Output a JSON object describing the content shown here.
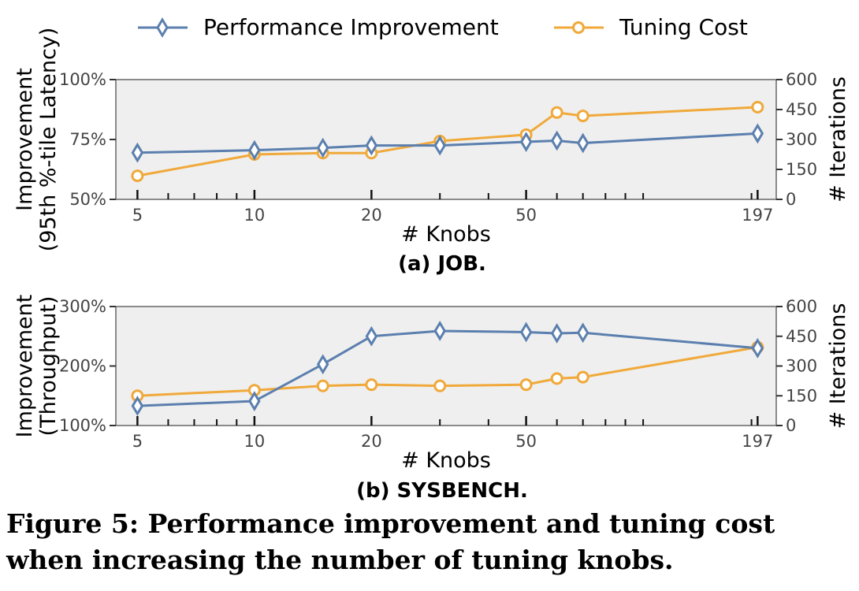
{
  "legend": {
    "perf_label": "Performance Improvement",
    "cost_label": "Tuning Cost"
  },
  "colors": {
    "perf": "#5b7fae",
    "cost": "#f0a93a",
    "panel_bg": "#efefef",
    "axis": "#666666"
  },
  "caption": "Figure 5: Performance improvement and tuning cost when increasing the number of tuning knobs.",
  "chart_data": [
    {
      "type": "line",
      "subtitle": "(a) JOB.",
      "xlabel": "# Knobs",
      "x_scale": "log",
      "x_ticks": [
        5,
        10,
        20,
        50,
        197
      ],
      "x_tick_labels": [
        "5",
        "10",
        "20",
        "50",
        "197"
      ],
      "x_minor_ticks": [
        6,
        7,
        8,
        9,
        30,
        40,
        60,
        70,
        80,
        90,
        100,
        190
      ],
      "xlim": [
        4.4,
        220
      ],
      "ylabel_left": [
        "Improvement",
        "(95th %-tile Latency)"
      ],
      "y_left_ticks": [
        "50%",
        "75%",
        "100%"
      ],
      "y_left_values": [
        50,
        75,
        100
      ],
      "ylim_left": [
        50,
        100
      ],
      "ylabel_right": "# Iterations",
      "y_right_ticks": [
        "0",
        "150",
        "300",
        "450",
        "600"
      ],
      "y_right_values": [
        0,
        150,
        300,
        450,
        600
      ],
      "ylim_right": [
        0,
        600
      ],
      "series": [
        {
          "name": "Performance Improvement",
          "axis": "left",
          "marker": "diamond",
          "x": [
            5,
            10,
            15,
            20,
            30,
            50,
            60,
            70,
            197
          ],
          "y": [
            69.5,
            70.5,
            71.5,
            72.5,
            72.5,
            74,
            74.5,
            73.5,
            77.5
          ]
        },
        {
          "name": "Tuning Cost",
          "axis": "right",
          "marker": "circle",
          "x": [
            5,
            10,
            15,
            20,
            30,
            50,
            60,
            70,
            197
          ],
          "y": [
            118,
            225,
            232,
            232,
            292,
            324,
            435,
            418,
            462
          ]
        }
      ]
    },
    {
      "type": "line",
      "subtitle": "(b) SYSBENCH.",
      "xlabel": "# Knobs",
      "x_scale": "log",
      "x_ticks": [
        5,
        10,
        20,
        50,
        197
      ],
      "x_tick_labels": [
        "5",
        "10",
        "20",
        "50",
        "197"
      ],
      "x_minor_ticks": [
        6,
        7,
        8,
        9,
        30,
        40,
        60,
        70,
        80,
        90,
        100,
        190
      ],
      "xlim": [
        4.4,
        220
      ],
      "ylabel_left": [
        "Improvement",
        "(Throughput)"
      ],
      "y_left_ticks": [
        "100%",
        "200%",
        "300%"
      ],
      "y_left_values": [
        100,
        200,
        300
      ],
      "ylim_left": [
        100,
        300
      ],
      "ylabel_right": "# Iterations",
      "y_right_ticks": [
        "0",
        "150",
        "300",
        "450",
        "600"
      ],
      "y_right_values": [
        0,
        150,
        300,
        450,
        600
      ],
      "ylim_right": [
        0,
        600
      ],
      "series": [
        {
          "name": "Performance Improvement",
          "axis": "left",
          "marker": "diamond",
          "x": [
            5,
            10,
            15,
            20,
            30,
            50,
            60,
            70,
            197
          ],
          "y": [
            133,
            141,
            203,
            250,
            259,
            257,
            255,
            256,
            230
          ]
        },
        {
          "name": "Tuning Cost",
          "axis": "right",
          "marker": "circle",
          "x": [
            5,
            10,
            15,
            20,
            30,
            50,
            60,
            70,
            197
          ],
          "y": [
            150,
            178,
            200,
            206,
            200,
            206,
            237,
            244,
            395
          ]
        }
      ]
    }
  ]
}
